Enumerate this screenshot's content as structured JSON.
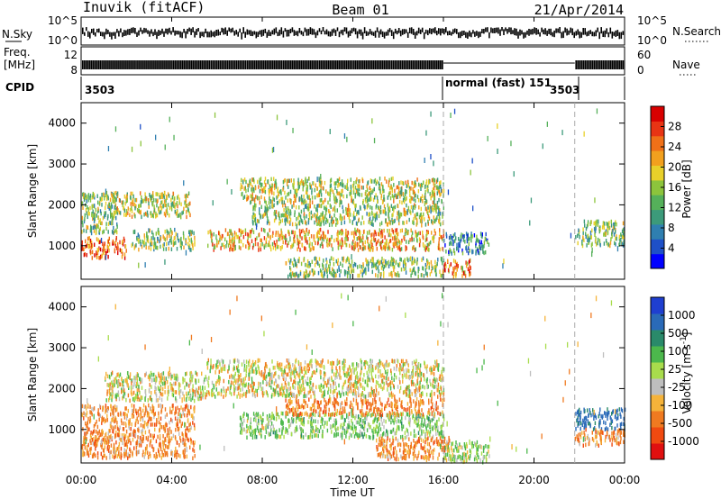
{
  "header": {
    "station": "Inuvik (fitACF)",
    "beam": "Beam 01",
    "date": "21/Apr/2014"
  },
  "strip": {
    "nsky_label": "N.Sky",
    "nsky_ticks": [
      "10^5",
      "10^0"
    ],
    "nsearch_label": "N.Search",
    "nsearch_ticks": [
      "10^5",
      "10^0"
    ],
    "freq_label": "Freq.",
    "freq_unit": "[MHz]",
    "freq_ticks": [
      "12",
      "8"
    ],
    "nave_label": "Nave",
    "nave_ticks": [
      "60",
      "0"
    ],
    "cpid_label": "CPID",
    "cpid_segments": [
      {
        "start_h": 0,
        "text": "3503"
      },
      {
        "start_h": 16,
        "text": "normal (fast) 151"
      },
      {
        "start_h": 21.8,
        "text": "3503"
      }
    ]
  },
  "chart_data": [
    {
      "type": "heatmap",
      "parameter": "power",
      "xlabel": "Time UT",
      "ylabel": "Slant Range [km]",
      "xlim": [
        0,
        24
      ],
      "ylim": [
        180,
        4500
      ],
      "yticks": [
        1000,
        2000,
        3000,
        4000
      ],
      "colorbar": {
        "label": "Power [dB]",
        "range": [
          0,
          32
        ],
        "ticks": [
          4,
          8,
          12,
          16,
          20,
          24,
          28
        ],
        "colors": [
          "#0000ff",
          "#1e50c8",
          "#2f7fb0",
          "#3c9a7a",
          "#55b05a",
          "#8cc43c",
          "#e8d02a",
          "#f2a01e",
          "#f07018",
          "#e83414",
          "#d80000"
        ]
      },
      "echo_regions": [
        {
          "t": [
            0,
            2
          ],
          "r": [
            700,
            1200
          ],
          "db": 26
        },
        {
          "t": [
            0,
            1.6
          ],
          "r": [
            1300,
            2300
          ],
          "db": 14
        },
        {
          "t": [
            1.2,
            4.8
          ],
          "r": [
            1700,
            2300
          ],
          "db": 17
        },
        {
          "t": [
            2.2,
            5
          ],
          "r": [
            900,
            1400
          ],
          "db": 15
        },
        {
          "t": [
            5.5,
            16
          ],
          "r": [
            900,
            1400
          ],
          "db": 21
        },
        {
          "t": [
            7.5,
            16
          ],
          "r": [
            1500,
            2000
          ],
          "db": 16
        },
        {
          "t": [
            7,
            16
          ],
          "r": [
            2050,
            2650
          ],
          "db": 17
        },
        {
          "t": [
            9,
            16
          ],
          "r": [
            250,
            700
          ],
          "db": 14
        },
        {
          "t": [
            16,
            17.2
          ],
          "r": [
            250,
            650
          ],
          "db": 24
        },
        {
          "t": [
            16,
            18
          ],
          "r": [
            800,
            1300
          ],
          "db": 9
        },
        {
          "t": [
            21.8,
            24
          ],
          "r": [
            1000,
            1600
          ],
          "db": 14
        }
      ]
    },
    {
      "type": "heatmap",
      "parameter": "velocity",
      "xlabel": "Time UT",
      "ylabel": "Slant Range [km]",
      "xlim": [
        0,
        24
      ],
      "ylim": [
        180,
        4500
      ],
      "yticks": [
        1000,
        2000,
        3000,
        4000
      ],
      "colorbar": {
        "label": "Velocity [m s^-1]",
        "ticks": [
          "1000",
          "500",
          "100",
          "25",
          "-25",
          "-100",
          "-500",
          "-1000"
        ],
        "colors": [
          "#1f3fd0",
          "#2a6ab8",
          "#2a8a6a",
          "#4cb84c",
          "#a8dc4c",
          "#bebebe",
          "#f5b33a",
          "#f07a20",
          "#f04a10",
          "#e01010"
        ]
      },
      "echo_regions": [
        {
          "t": [
            0,
            5
          ],
          "r": [
            300,
            1600
          ],
          "v": -150
        },
        {
          "t": [
            1,
            5.5
          ],
          "r": [
            1700,
            2400
          ],
          "v": 10
        },
        {
          "t": [
            5.5,
            16
          ],
          "r": [
            1800,
            2700
          ],
          "v": 0
        },
        {
          "t": [
            7,
            16
          ],
          "r": [
            800,
            1400
          ],
          "v": 120
        },
        {
          "t": [
            9,
            16
          ],
          "r": [
            1350,
            1750
          ],
          "v": -180
        },
        {
          "t": [
            13,
            16.3
          ],
          "r": [
            250,
            800
          ],
          "v": -160
        },
        {
          "t": [
            16,
            18
          ],
          "r": [
            200,
            700
          ],
          "v": 60
        },
        {
          "t": [
            21.8,
            24
          ],
          "r": [
            1000,
            1500
          ],
          "v": 600
        },
        {
          "t": [
            21.8,
            24
          ],
          "r": [
            600,
            1000
          ],
          "v": -150
        }
      ]
    }
  ],
  "time_axis": {
    "ticks": [
      "00:00",
      "04:00",
      "08:00",
      "12:00",
      "16:00",
      "20:00",
      "00:00"
    ],
    "label": "Time UT"
  }
}
